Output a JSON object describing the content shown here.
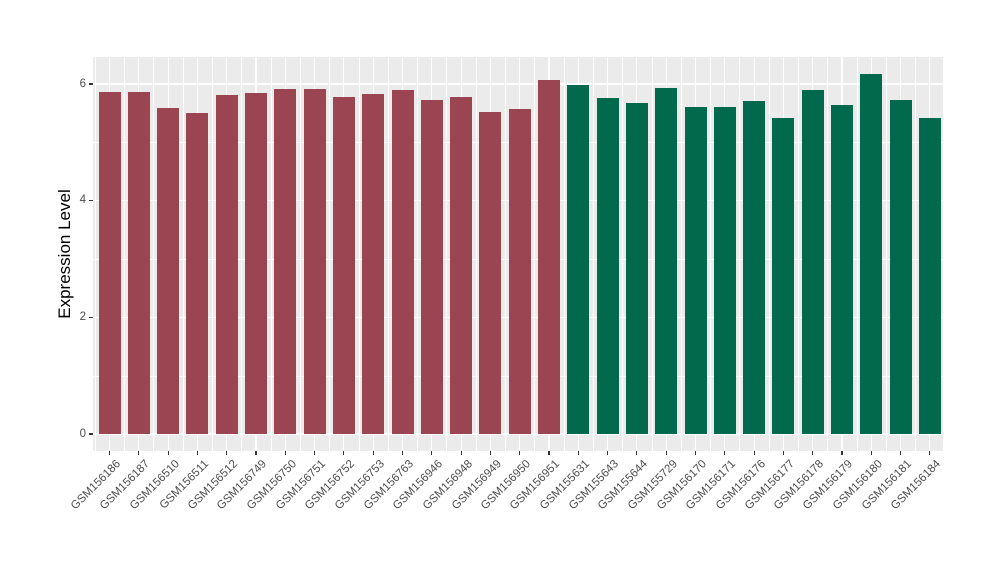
{
  "chart_data": {
    "type": "bar",
    "title": "",
    "xlabel": "",
    "ylabel": "Expression Level",
    "ylim": [
      0,
      6.46
    ],
    "yticks": [
      0,
      2,
      4,
      6
    ],
    "yminor": [
      1,
      3,
      5
    ],
    "grid": true,
    "legend_position": "none",
    "panel_bg": "#EBEBEB",
    "grid_color": "#FFFFFF",
    "tick_color": "#333333",
    "tick_label_color": "#4D4D4D",
    "group_colors": {
      "group1": "#9B4452",
      "group2": "#016A4D"
    },
    "bars": [
      {
        "label": "GSM156186",
        "value": 5.86,
        "group": "group1"
      },
      {
        "label": "GSM156187",
        "value": 5.86,
        "group": "group1"
      },
      {
        "label": "GSM156510",
        "value": 5.59,
        "group": "group1"
      },
      {
        "label": "GSM156511",
        "value": 5.51,
        "group": "group1"
      },
      {
        "label": "GSM156512",
        "value": 5.81,
        "group": "group1"
      },
      {
        "label": "GSM156749",
        "value": 5.85,
        "group": "group1"
      },
      {
        "label": "GSM156750",
        "value": 5.92,
        "group": "group1"
      },
      {
        "label": "GSM156751",
        "value": 5.92,
        "group": "group1"
      },
      {
        "label": "GSM156752",
        "value": 5.77,
        "group": "group1"
      },
      {
        "label": "GSM156753",
        "value": 5.83,
        "group": "group1"
      },
      {
        "label": "GSM156763",
        "value": 5.9,
        "group": "group1"
      },
      {
        "label": "GSM156946",
        "value": 5.73,
        "group": "group1"
      },
      {
        "label": "GSM156948",
        "value": 5.77,
        "group": "group1"
      },
      {
        "label": "GSM156949",
        "value": 5.52,
        "group": "group1"
      },
      {
        "label": "GSM156950",
        "value": 5.58,
        "group": "group1"
      },
      {
        "label": "GSM156951",
        "value": 6.07,
        "group": "group1"
      },
      {
        "label": "GSM155631",
        "value": 5.98,
        "group": "group2"
      },
      {
        "label": "GSM155643",
        "value": 5.76,
        "group": "group2"
      },
      {
        "label": "GSM155644",
        "value": 5.67,
        "group": "group2"
      },
      {
        "label": "GSM155729",
        "value": 5.94,
        "group": "group2"
      },
      {
        "label": "GSM156170",
        "value": 5.61,
        "group": "group2"
      },
      {
        "label": "GSM156171",
        "value": 5.61,
        "group": "group2"
      },
      {
        "label": "GSM156176",
        "value": 5.71,
        "group": "group2"
      },
      {
        "label": "GSM156177",
        "value": 5.42,
        "group": "group2"
      },
      {
        "label": "GSM156178",
        "value": 5.9,
        "group": "group2"
      },
      {
        "label": "GSM156179",
        "value": 5.64,
        "group": "group2"
      },
      {
        "label": "GSM156180",
        "value": 6.17,
        "group": "group2"
      },
      {
        "label": "GSM156181",
        "value": 5.73,
        "group": "group2"
      },
      {
        "label": "GSM156184",
        "value": 5.42,
        "group": "group2"
      }
    ]
  }
}
